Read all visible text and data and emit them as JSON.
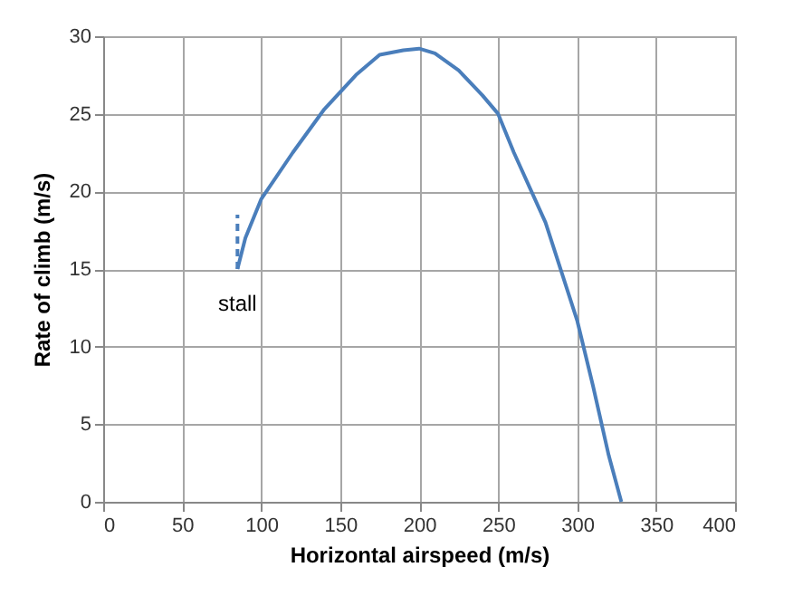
{
  "chart_data": {
    "type": "line",
    "xlabel": "Horizontal airspeed (m/s)",
    "ylabel": "Rate of climb (m/s)",
    "xlim": [
      0,
      400
    ],
    "xticks": [
      0,
      50,
      100,
      150,
      200,
      250,
      300,
      350,
      400
    ],
    "ylim": [
      0,
      30
    ],
    "yticks": [
      0,
      5,
      10,
      15,
      20,
      25,
      30
    ],
    "grid": true,
    "series": [
      {
        "color": "#4a7ebb",
        "line_style": "solid",
        "x": [
          85,
          90,
          100,
          120,
          140,
          160,
          175,
          190,
          200,
          210,
          225,
          240,
          250,
          260,
          280,
          300,
          310,
          320,
          328
        ],
        "values": [
          15,
          17,
          19.5,
          22.5,
          25.3,
          27.5,
          28.8,
          29.1,
          29.2,
          28.9,
          27.8,
          26.2,
          25,
          22.5,
          18,
          11.7,
          7.5,
          3,
          0
        ]
      },
      {
        "color": "#4a7ebb",
        "line_style": "dashed",
        "x": [
          85,
          85
        ],
        "values": [
          15,
          18.5
        ]
      }
    ],
    "annotations": [
      {
        "text": "stall",
        "x": 85,
        "y": 15
      }
    ]
  }
}
